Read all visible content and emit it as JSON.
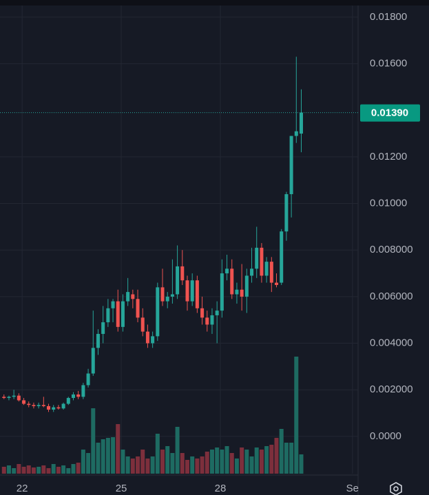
{
  "chart_data": {
    "type": "candlestick",
    "x": [
      21.45,
      21.6,
      21.75,
      21.9,
      22.05,
      22.2,
      22.35,
      22.5,
      22.65,
      22.8,
      22.95,
      23.1,
      23.25,
      23.4,
      23.55,
      23.7,
      23.85,
      24,
      24.15,
      24.3,
      24.45,
      24.6,
      24.75,
      24.9,
      25.05,
      25.2,
      25.35,
      25.5,
      25.65,
      25.8,
      25.95,
      26.1,
      26.25,
      26.4,
      26.55,
      26.7,
      26.85,
      27,
      27.15,
      27.3,
      27.45,
      27.6,
      27.75,
      27.9,
      28.05,
      28.2,
      28.35,
      28.5,
      28.65,
      28.8,
      28.95,
      29.1,
      29.25,
      29.4,
      29.55,
      29.7,
      29.85,
      30,
      30.15,
      30.3,
      30.45
    ],
    "open": [
      0.0017,
      0.00165,
      0.0017,
      0.00175,
      0.00155,
      0.0014,
      0.00135,
      0.0013,
      0.00135,
      0.0013,
      0.00115,
      0.00125,
      0.0012,
      0.0014,
      0.00165,
      0.0018,
      0.0017,
      0.0022,
      0.0027,
      0.0038,
      0.0044,
      0.0049,
      0.0055,
      0.0058,
      0.0047,
      0.0058,
      0.0061,
      0.0059,
      0.0051,
      0.0045,
      0.004,
      0.0043,
      0.0064,
      0.0058,
      0.006,
      0.0061,
      0.0073,
      0.0067,
      0.0058,
      0.0067,
      0.0055,
      0.0051,
      0.0048,
      0.0052,
      0.0054,
      0.007,
      0.0072,
      0.0061,
      0.0063,
      0.006,
      0.0069,
      0.0072,
      0.0081,
      0.0069,
      0.0075,
      0.0066,
      0.0066,
      0.0088,
      0.0104,
      0.0129,
      0.013
    ],
    "high": [
      0.0018,
      0.00175,
      0.002,
      0.00185,
      0.00165,
      0.0015,
      0.00145,
      0.00145,
      0.0017,
      0.0014,
      0.00135,
      0.00135,
      0.00145,
      0.0017,
      0.0019,
      0.00195,
      0.0023,
      0.0029,
      0.0054,
      0.0046,
      0.0056,
      0.0059,
      0.0059,
      0.0063,
      0.0061,
      0.0068,
      0.0063,
      0.0063,
      0.0055,
      0.0048,
      0.0045,
      0.0066,
      0.0072,
      0.0062,
      0.0076,
      0.0082,
      0.008,
      0.0069,
      0.007,
      0.0069,
      0.006,
      0.0054,
      0.0055,
      0.0058,
      0.0076,
      0.0078,
      0.0076,
      0.0066,
      0.0074,
      0.0072,
      0.0081,
      0.009,
      0.0083,
      0.0077,
      0.0077,
      0.007,
      0.0089,
      0.0105,
      0.0129,
      0.0163,
      0.0149
    ],
    "low": [
      0.0016,
      0.00155,
      0.0016,
      0.0015,
      0.00135,
      0.00125,
      0.0012,
      0.0012,
      0.00125,
      0.00105,
      0.00105,
      0.00115,
      0.00115,
      0.00135,
      0.00155,
      0.0016,
      0.0016,
      0.0021,
      0.0026,
      0.0035,
      0.004,
      0.0047,
      0.0049,
      0.0045,
      0.0045,
      0.0056,
      0.0055,
      0.0049,
      0.0043,
      0.0038,
      0.0038,
      0.0041,
      0.0056,
      0.0055,
      0.0057,
      0.0059,
      0.0065,
      0.0054,
      0.0056,
      0.0053,
      0.0048,
      0.0045,
      0.0044,
      0.004,
      0.0051,
      0.0067,
      0.0059,
      0.0057,
      0.0054,
      0.0053,
      0.0066,
      0.0068,
      0.0066,
      0.0066,
      0.0062,
      0.0064,
      0.0065,
      0.0084,
      0.0094,
      0.0126,
      0.0122
    ],
    "close": [
      0.00165,
      0.0017,
      0.00175,
      0.00155,
      0.0014,
      0.00135,
      0.0013,
      0.00135,
      0.0013,
      0.00115,
      0.00125,
      0.0012,
      0.0014,
      0.00165,
      0.0018,
      0.0017,
      0.0022,
      0.0027,
      0.0038,
      0.0044,
      0.0049,
      0.0055,
      0.0058,
      0.0047,
      0.0058,
      0.0062,
      0.0059,
      0.0051,
      0.0045,
      0.004,
      0.0043,
      0.0064,
      0.0058,
      0.006,
      0.0061,
      0.0073,
      0.0067,
      0.0058,
      0.0067,
      0.0055,
      0.0051,
      0.0048,
      0.0052,
      0.0054,
      0.007,
      0.0072,
      0.0061,
      0.0063,
      0.006,
      0.0069,
      0.0072,
      0.0081,
      0.0069,
      0.0075,
      0.0066,
      0.0065,
      0.0088,
      0.0104,
      0.0129,
      0.0131,
      0.0139
    ],
    "volume": [
      10,
      12,
      8,
      14,
      10,
      12,
      9,
      10,
      12,
      8,
      14,
      10,
      12,
      8,
      14,
      16,
      35,
      30,
      95,
      45,
      50,
      52,
      53,
      72,
      35,
      25,
      22,
      25,
      35,
      22,
      25,
      58,
      35,
      40,
      30,
      68,
      30,
      20,
      25,
      22,
      25,
      32,
      35,
      38,
      35,
      40,
      30,
      22,
      38,
      35,
      25,
      38,
      35,
      40,
      42,
      52,
      65,
      45,
      45,
      170,
      28
    ],
    "up_color": "#26a69a",
    "down_color": "#ef5350",
    "up_volume_color": "#1e6b62",
    "down_volume_color": "#7d2f3c",
    "xlim": [
      21.33,
      32.17
    ],
    "ylim": [
      -0.0016,
      0.0185
    ],
    "xticks": [
      22,
      25,
      28,
      {
        "value": 32,
        "label": "Se"
      }
    ],
    "yticks": [
      {
        "value": 0,
        "label": "0.0000"
      },
      {
        "value": 0.002,
        "label": "0.002000"
      },
      {
        "value": 0.004,
        "label": "0.004000"
      },
      {
        "value": 0.006,
        "label": "0.006000"
      },
      {
        "value": 0.008,
        "label": "0.008000"
      },
      {
        "value": 0.01,
        "label": "0.01000"
      },
      {
        "value": 0.012,
        "label": "0.01200"
      },
      {
        "value": 0.016,
        "label": "0.01600"
      },
      {
        "value": 0.018,
        "label": "0.01800"
      }
    ],
    "grid": true,
    "last_price": {
      "value": 0.0139,
      "label": "0.01390"
    }
  }
}
